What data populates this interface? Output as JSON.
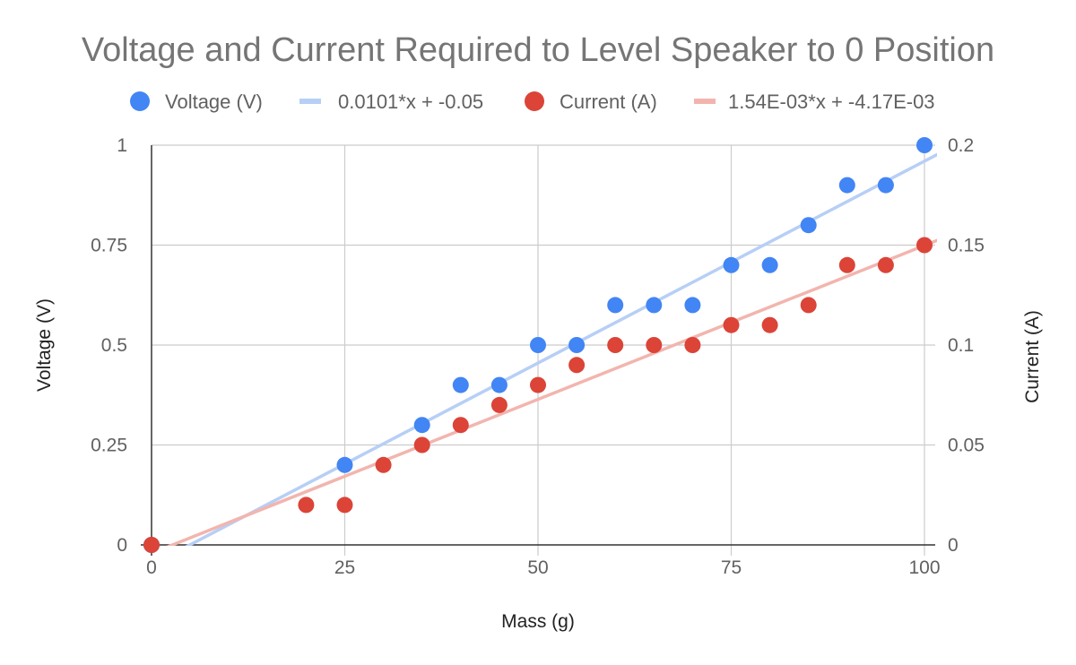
{
  "chart_data": {
    "type": "scatter",
    "title": "Voltage and Current Required to Level Speaker to 0 Position",
    "xlabel": "Mass (g)",
    "ylabel": "Voltage (V)",
    "y2label": "Current (A)",
    "xlim": [
      0,
      100
    ],
    "ylim": [
      0,
      1
    ],
    "y2lim": [
      0,
      0.2
    ],
    "x_ticks": [
      "0",
      "25",
      "50",
      "75",
      "100"
    ],
    "y_ticks": [
      "0",
      "0.25",
      "0.5",
      "0.75",
      "1"
    ],
    "y2_ticks": [
      "0",
      "0.05",
      "0.1",
      "0.15",
      "0.2"
    ],
    "grid": true,
    "legend_position": "top",
    "series": [
      {
        "name": "Voltage (V)",
        "axis": "left",
        "color": "#4285f4",
        "x": [
          0,
          25,
          35,
          40,
          45,
          50,
          55,
          60,
          65,
          70,
          75,
          80,
          85,
          90,
          95,
          100
        ],
        "y": [
          0,
          0.2,
          0.3,
          0.4,
          0.4,
          0.5,
          0.5,
          0.6,
          0.6,
          0.6,
          0.7,
          0.7,
          0.8,
          0.9,
          0.9,
          1.0
        ]
      },
      {
        "name": "Current (A)",
        "axis": "right",
        "color": "#db4437",
        "x": [
          0,
          20,
          25,
          30,
          35,
          40,
          45,
          50,
          55,
          60,
          65,
          70,
          75,
          80,
          85,
          90,
          95,
          100
        ],
        "y": [
          0,
          0.02,
          0.02,
          0.04,
          0.05,
          0.06,
          0.07,
          0.08,
          0.09,
          0.1,
          0.1,
          0.1,
          0.11,
          0.11,
          0.12,
          0.14,
          0.14,
          0.15
        ]
      }
    ],
    "trendlines": [
      {
        "name": "0.0101*x + -0.05",
        "axis": "left",
        "color": "#b7cff6",
        "slope": 0.0101,
        "intercept": -0.05
      },
      {
        "name": "1.54E-03*x + -4.17E-03",
        "axis": "right",
        "color": "#f2b5ae",
        "slope": 0.00154,
        "intercept": -0.00417
      }
    ],
    "legend": [
      {
        "label": "Voltage (V)",
        "kind": "dot",
        "color": "#4285f4"
      },
      {
        "label": "0.0101*x + -0.05",
        "kind": "line",
        "color": "#b7cff6"
      },
      {
        "label": "Current (A)",
        "kind": "dot",
        "color": "#db4437"
      },
      {
        "label": "1.54E-03*x + -4.17E-03",
        "kind": "line",
        "color": "#f2b5ae"
      }
    ]
  }
}
